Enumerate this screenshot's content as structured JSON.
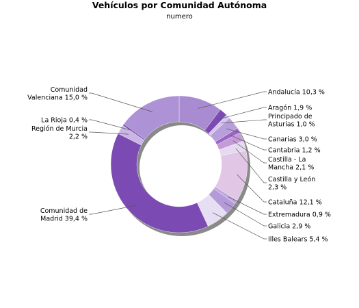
{
  "chart_data": {
    "type": "pie",
    "title": "Vehículos por Comunidad Autónoma",
    "subtitle": "numero",
    "donut": true,
    "slices": [
      {
        "label": "Andalucía 10,3 %",
        "value": 10.3,
        "color": "#a98bd2",
        "side": "right"
      },
      {
        "label": "Aragón 1,9 %",
        "value": 1.9,
        "color": "#7b4bb3",
        "side": "right"
      },
      {
        "label": "Principado de Asturias 1,0 %",
        "value": 1.0,
        "color": "#d8c7ec",
        "side": "right"
      },
      {
        "label": "Canarias 3,0 %",
        "value": 3.0,
        "color": "#b79fdc",
        "side": "right"
      },
      {
        "label": "Cantabria 1,2 %",
        "value": 1.2,
        "color": "#9b66c4",
        "side": "right"
      },
      {
        "label": "Castilla - La Mancha 2,1 %",
        "value": 2.1,
        "color": "#c49ad8",
        "side": "right"
      },
      {
        "label": "Castilla y León 2,3 %",
        "value": 2.3,
        "color": "#e6daf1",
        "side": "right"
      },
      {
        "label": "Cataluña 12,1 %",
        "value": 12.1,
        "color": "#e2c6e6",
        "side": "right"
      },
      {
        "label": "Extremadura 0,9 %",
        "value": 0.9,
        "color": "#bfa9df",
        "side": "right"
      },
      {
        "label": "Galicia 2,9 %",
        "value": 2.9,
        "color": "#b49ad9",
        "side": "right"
      },
      {
        "label": "Illes Balears 5,4 %",
        "value": 5.4,
        "color": "#e6def3",
        "side": "right"
      },
      {
        "label": "Comunidad de Madrid 39,4 %",
        "value": 39.4,
        "color": "#7b4bb3",
        "side": "left"
      },
      {
        "label": "Región de Murcia 2,2 %",
        "value": 2.2,
        "color": "#c9b6e6",
        "side": "left"
      },
      {
        "label": "La Rioja 0,4 %",
        "value": 0.4,
        "color": "#7a4ab1",
        "side": "left"
      },
      {
        "label": "Comunidad Valenciana 15,0 %",
        "value": 15.0,
        "color": "#ae92d6",
        "side": "left"
      }
    ]
  }
}
